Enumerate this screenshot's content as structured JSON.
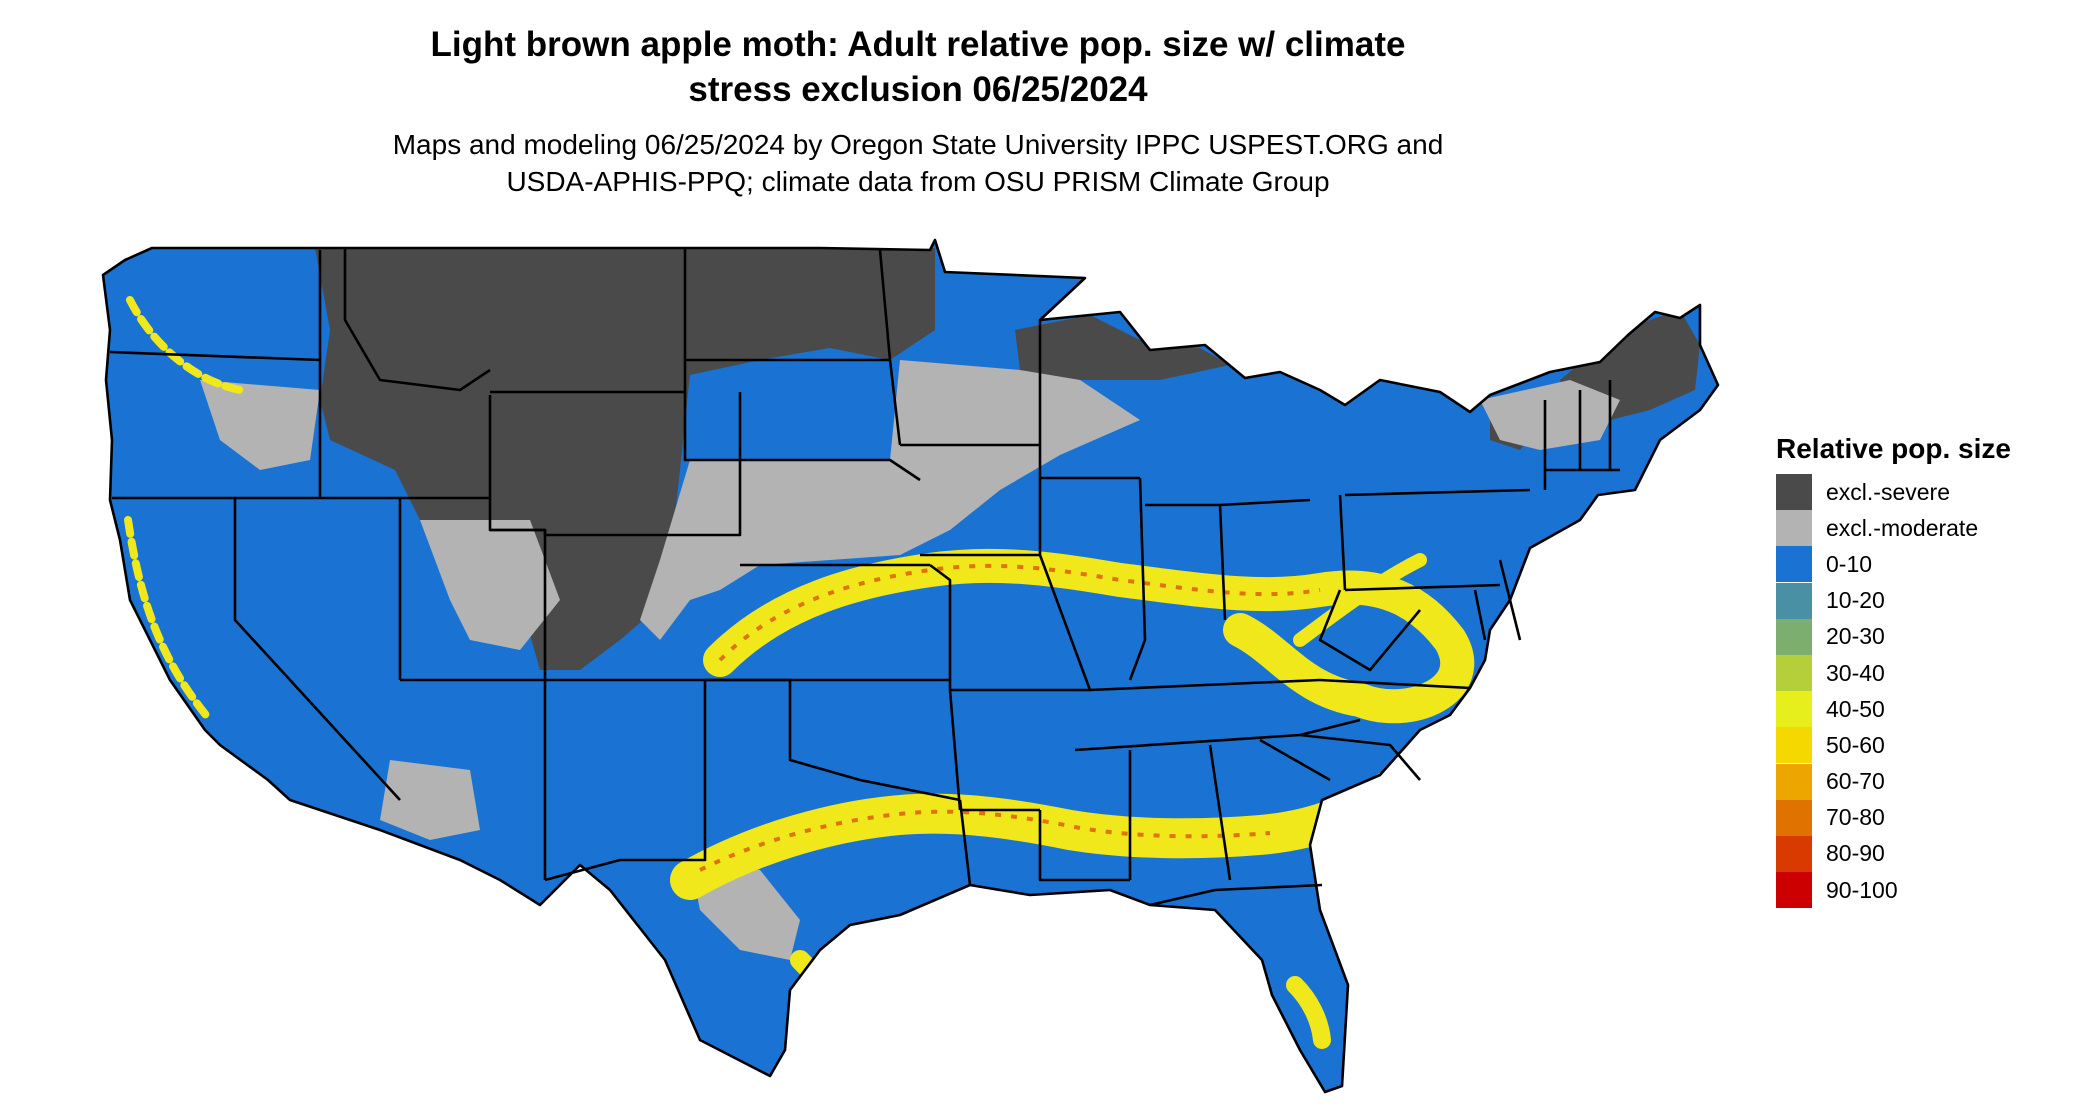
{
  "title": {
    "line1": "Light brown apple moth: Adult relative pop. size w/ climate",
    "line2": "stress exclusion 06/25/2024"
  },
  "subtitle": {
    "line1": "Maps and modeling 06/25/2024 by Oregon State University IPPC USPEST.ORG and",
    "line2": "USDA-APHIS-PPQ; climate data from OSU PRISM Climate Group"
  },
  "legend": {
    "title": "Relative pop. size",
    "items": [
      {
        "label": "excl.-severe",
        "color": "#4a4a4a"
      },
      {
        "label": "excl.-moderate",
        "color": "#b3b3b3"
      },
      {
        "label": "0-10",
        "color": "#1a73d2"
      },
      {
        "label": "10-20",
        "color": "#4a90a4"
      },
      {
        "label": "20-30",
        "color": "#7bae6f"
      },
      {
        "label": "30-40",
        "color": "#b5cf3a"
      },
      {
        "label": "40-50",
        "color": "#e6ef1c"
      },
      {
        "label": "50-60",
        "color": "#f5d800"
      },
      {
        "label": "60-70",
        "color": "#eda500"
      },
      {
        "label": "70-80",
        "color": "#e07200"
      },
      {
        "label": "80-90",
        "color": "#d93a00"
      },
      {
        "label": "90-100",
        "color": "#cc0000"
      }
    ]
  },
  "colors": {
    "severe": "#4a4a4a",
    "moderate": "#b3b3b3",
    "low": "#1a73d2",
    "band": "#f0e81a",
    "band_core": "#e07200",
    "border": "#000000"
  }
}
